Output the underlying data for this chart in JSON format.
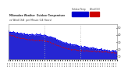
{
  "title": "Milwaukee Weather  Outdoor Temperature vs Wind Chill per Minute (24 Hours)",
  "legend_temp_label": "Outdoor Temp",
  "legend_wc_label": "Wind Chill",
  "legend_temp_color": "#0000cc",
  "legend_wc_color": "#cc0000",
  "bg_color": "#ffffff",
  "plot_bg_color": "#ffffff",
  "temp_color": "#0000ee",
  "wc_color": "#dd0000",
  "temp_fill_color": "#0000cc",
  "temp_fill_alpha": 0.85,
  "grid_color": "#bbbbbb",
  "ylim": [
    5,
    55
  ],
  "yticks": [
    10,
    20,
    30,
    40,
    50
  ],
  "n_points": 1440,
  "vline_positions": [
    0.333,
    0.667
  ],
  "vline_color": "#aaaaaa",
  "vline_style": "dotted"
}
